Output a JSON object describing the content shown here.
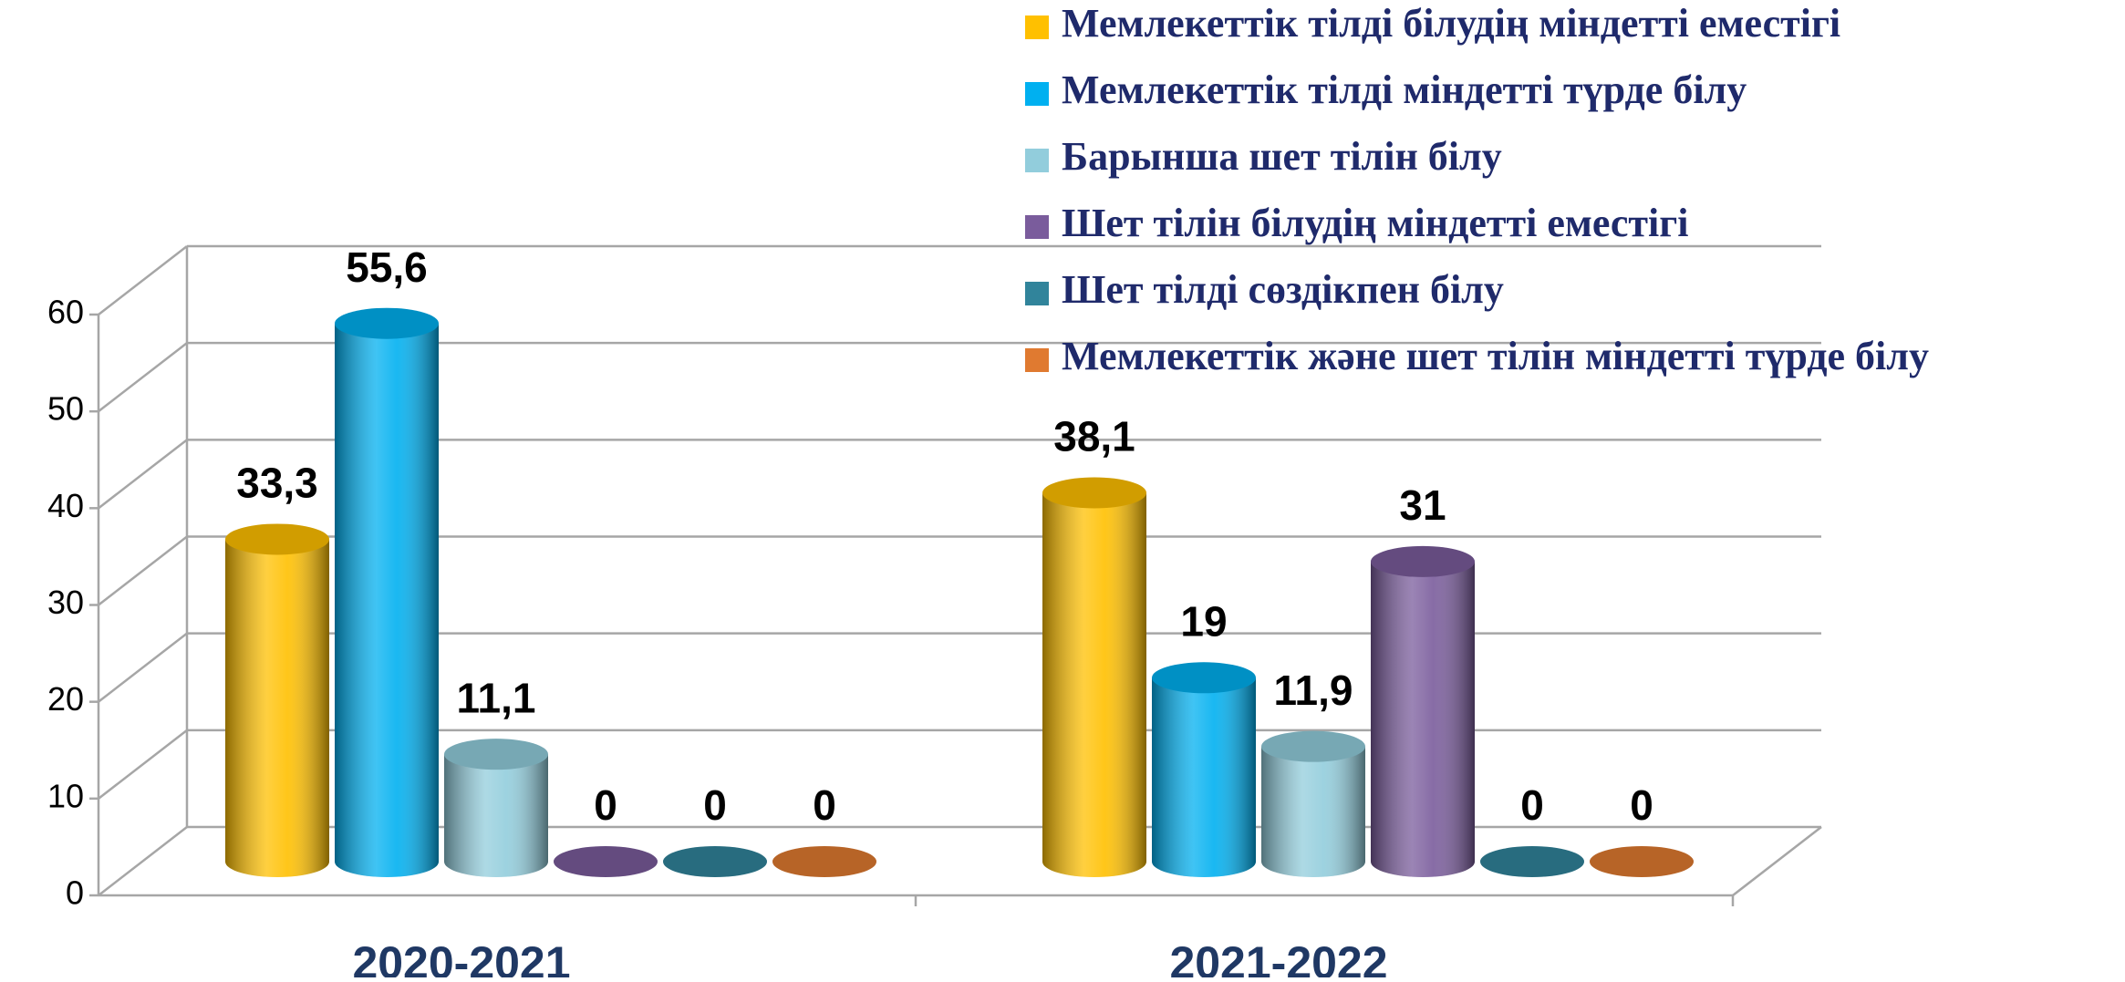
{
  "chart_data": {
    "type": "bar3d",
    "categories": [
      "2020-2021",
      "2021-2022"
    ],
    "series": [
      {
        "name": "Мемлекеттік тілді білудің міндетті еместігі",
        "color": "#ffc000",
        "values": [
          33.3,
          38.1
        ],
        "value_labels": [
          "33,3",
          "38,1"
        ]
      },
      {
        "name": "Мемлекеттік тілді міндетті түрде білу",
        "color": "#00b0f0",
        "values": [
          55.6,
          19
        ],
        "value_labels": [
          "55,6",
          "19"
        ]
      },
      {
        "name": "Барынша шет тілін білу",
        "color": "#92cddc",
        "values": [
          11.1,
          11.9
        ],
        "value_labels": [
          "11,1",
          "11,9"
        ]
      },
      {
        "name": "Шет тілін білудің міндетті еместігі",
        "color": "#7a5c9c",
        "values": [
          0,
          31
        ],
        "value_labels": [
          "0",
          "31"
        ]
      },
      {
        "name": "Шет тілді сөздікпен білу",
        "color": "#31849b",
        "values": [
          0,
          0
        ],
        "value_labels": [
          "0",
          "0"
        ]
      },
      {
        "name": "Мемлекеттік және шет тілін міндетті түрде білу",
        "color": "#e07a30",
        "values": [
          0,
          0
        ],
        "value_labels": [
          "0",
          "0"
        ]
      }
    ],
    "ylim": [
      0,
      60
    ],
    "yticks": [
      0,
      10,
      20,
      30,
      40,
      50,
      60
    ],
    "grid": true,
    "legend": "top-right"
  }
}
